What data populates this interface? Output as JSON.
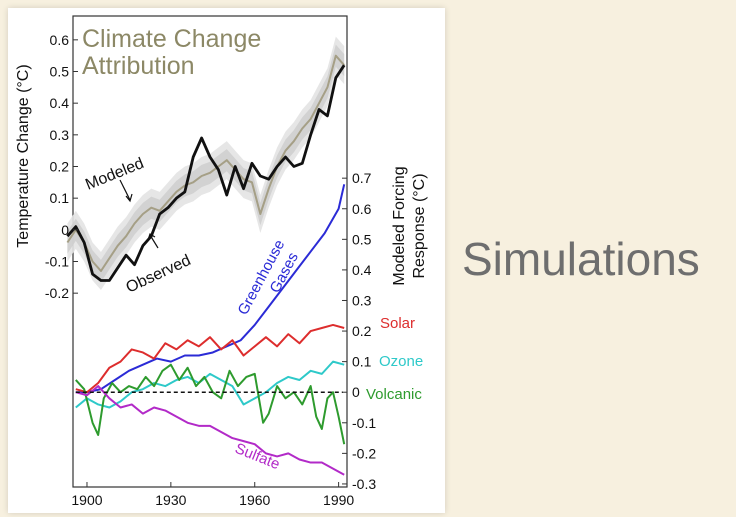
{
  "slide": {
    "caption": "Simulations"
  },
  "colors": {
    "observed": "#111111",
    "modeled": "#a59f86",
    "band": "#c9c9c9",
    "greenhouse": "#2b2bd6",
    "solar": "#dd2d2d",
    "ozone": "#2ec9c9",
    "volcanic": "#2e9b2e",
    "sulfate": "#b22ac8",
    "title": "#8c8866"
  },
  "chart_data": {
    "type": "line",
    "title_lines": [
      "Climate Change",
      "Attribution"
    ],
    "xlim": [
      1895,
      1993
    ],
    "x_ticks": [
      1900,
      1930,
      1960,
      1990
    ],
    "left_axis": {
      "label": "Temperature Change (°C)",
      "range": [
        -0.25,
        0.65
      ],
      "ticks": [
        "0.6",
        "0.5",
        "0.4",
        "0.3",
        "0.2",
        "0.1",
        "0",
        "-0.1",
        "-0.2"
      ],
      "tick_values": [
        0.6,
        0.5,
        0.4,
        0.3,
        0.2,
        0.1,
        0,
        -0.1,
        -0.2
      ]
    },
    "right_axis": {
      "label_lines": [
        "Modeled Forcing",
        "Response (°C)"
      ],
      "range": [
        -0.31,
        0.73
      ],
      "ticks": [
        "0.7",
        "0.6",
        "0.5",
        "0.4",
        "0.3",
        "0.2",
        "0.1",
        "0",
        "-0.1",
        "-0.2",
        "-0.3"
      ],
      "tick_values": [
        0.7,
        0.6,
        0.5,
        0.4,
        0.3,
        0.2,
        0.1,
        0,
        -0.1,
        -0.2,
        -0.3
      ]
    },
    "temperature_series": [
      {
        "name": "Observed",
        "axis": "left",
        "x": [
          1893,
          1896,
          1899,
          1902,
          1905,
          1908,
          1911,
          1914,
          1917,
          1920,
          1923,
          1926,
          1929,
          1932,
          1935,
          1938,
          1941,
          1944,
          1947,
          1950,
          1953,
          1956,
          1959,
          1962,
          1965,
          1968,
          1971,
          1974,
          1977,
          1980,
          1983,
          1986,
          1989,
          1992
        ],
        "y": [
          -0.02,
          0.01,
          -0.04,
          -0.14,
          -0.16,
          -0.16,
          -0.12,
          -0.08,
          -0.11,
          -0.05,
          -0.02,
          0.05,
          0.07,
          0.1,
          0.12,
          0.23,
          0.29,
          0.23,
          0.19,
          0.11,
          0.2,
          0.13,
          0.21,
          0.17,
          0.16,
          0.2,
          0.23,
          0.2,
          0.21,
          0.3,
          0.38,
          0.36,
          0.48,
          0.52
        ]
      },
      {
        "name": "Modeled",
        "axis": "left",
        "x": [
          1893,
          1896,
          1899,
          1902,
          1905,
          1908,
          1911,
          1914,
          1917,
          1920,
          1923,
          1926,
          1929,
          1932,
          1935,
          1938,
          1941,
          1944,
          1947,
          1950,
          1953,
          1956,
          1959,
          1962,
          1965,
          1968,
          1971,
          1974,
          1977,
          1980,
          1983,
          1986,
          1989,
          1992
        ],
        "y": [
          -0.04,
          0.0,
          -0.04,
          -0.1,
          -0.13,
          -0.09,
          -0.05,
          -0.02,
          0.02,
          0.05,
          0.07,
          0.06,
          0.09,
          0.12,
          0.14,
          0.15,
          0.17,
          0.18,
          0.2,
          0.22,
          0.19,
          0.16,
          0.15,
          0.05,
          0.13,
          0.2,
          0.25,
          0.28,
          0.32,
          0.35,
          0.4,
          0.45,
          0.55,
          0.52
        ]
      }
    ],
    "forcing_series": [
      {
        "name": "Greenhouse Gases",
        "axis": "right",
        "x": [
          1896,
          1900,
          1905,
          1910,
          1915,
          1920,
          1925,
          1930,
          1935,
          1940,
          1945,
          1950,
          1955,
          1960,
          1965,
          1970,
          1975,
          1980,
          1985,
          1990,
          1992
        ],
        "y": [
          0.0,
          0.0,
          0.01,
          0.04,
          0.07,
          0.09,
          0.11,
          0.1,
          0.12,
          0.12,
          0.13,
          0.15,
          0.17,
          0.22,
          0.28,
          0.34,
          0.4,
          0.46,
          0.52,
          0.6,
          0.68
        ]
      },
      {
        "name": "Solar",
        "axis": "right",
        "x": [
          1896,
          1900,
          1904,
          1908,
          1912,
          1916,
          1920,
          1924,
          1928,
          1932,
          1936,
          1940,
          1944,
          1948,
          1952,
          1956,
          1960,
          1964,
          1968,
          1972,
          1976,
          1980,
          1984,
          1988,
          1992
        ],
        "y": [
          0.01,
          0.0,
          0.03,
          0.08,
          0.1,
          0.14,
          0.13,
          0.11,
          0.16,
          0.14,
          0.17,
          0.15,
          0.18,
          0.14,
          0.17,
          0.12,
          0.15,
          0.18,
          0.15,
          0.19,
          0.16,
          0.2,
          0.21,
          0.22,
          0.21
        ]
      },
      {
        "name": "Ozone",
        "axis": "right",
        "x": [
          1896,
          1900,
          1904,
          1908,
          1912,
          1916,
          1920,
          1924,
          1928,
          1932,
          1936,
          1940,
          1944,
          1948,
          1952,
          1956,
          1960,
          1964,
          1968,
          1972,
          1976,
          1980,
          1984,
          1988,
          1992
        ],
        "y": [
          -0.05,
          -0.02,
          -0.04,
          -0.05,
          -0.03,
          0.0,
          0.01,
          0.03,
          0.02,
          0.04,
          0.05,
          0.03,
          0.06,
          0.04,
          0.02,
          -0.04,
          -0.02,
          0.0,
          0.03,
          0.05,
          0.04,
          0.07,
          0.06,
          0.1,
          0.09
        ]
      },
      {
        "name": "Volcanic",
        "axis": "right",
        "x": [
          1896,
          1899,
          1902,
          1904,
          1906,
          1909,
          1912,
          1915,
          1918,
          1921,
          1924,
          1927,
          1930,
          1933,
          1936,
          1939,
          1942,
          1945,
          1948,
          1951,
          1954,
          1957,
          1960,
          1963,
          1965,
          1968,
          1971,
          1974,
          1977,
          1980,
          1982,
          1984,
          1986,
          1988,
          1990,
          1992
        ],
        "y": [
          0.04,
          0.01,
          -0.1,
          -0.14,
          -0.02,
          0.03,
          0.0,
          0.02,
          0.01,
          0.05,
          0.02,
          0.07,
          0.09,
          0.04,
          0.08,
          0.02,
          0.05,
          0.0,
          -0.02,
          0.07,
          0.02,
          0.05,
          0.06,
          -0.1,
          -0.07,
          0.02,
          -0.02,
          0.0,
          -0.04,
          0.02,
          -0.08,
          -0.12,
          -0.02,
          0.0,
          -0.08,
          -0.17
        ]
      },
      {
        "name": "Sulfate",
        "axis": "right",
        "x": [
          1896,
          1900,
          1904,
          1908,
          1912,
          1916,
          1920,
          1924,
          1928,
          1932,
          1936,
          1940,
          1944,
          1948,
          1952,
          1956,
          1960,
          1964,
          1968,
          1972,
          1976,
          1980,
          1984,
          1988,
          1992
        ],
        "y": [
          0.0,
          -0.01,
          0.02,
          -0.02,
          -0.05,
          -0.04,
          -0.07,
          -0.05,
          -0.06,
          -0.08,
          -0.1,
          -0.11,
          -0.11,
          -0.13,
          -0.15,
          -0.16,
          -0.17,
          -0.2,
          -0.21,
          -0.2,
          -0.22,
          -0.23,
          -0.23,
          -0.25,
          -0.27
        ]
      }
    ],
    "labels": {
      "modeled": "Modeled",
      "observed": "Observed",
      "greenhouse_lines": [
        "Greenhouse",
        "Gases"
      ],
      "solar": "Solar",
      "ozone": "Ozone",
      "volcanic": "Volcanic",
      "sulfate": "Sulfate"
    }
  }
}
